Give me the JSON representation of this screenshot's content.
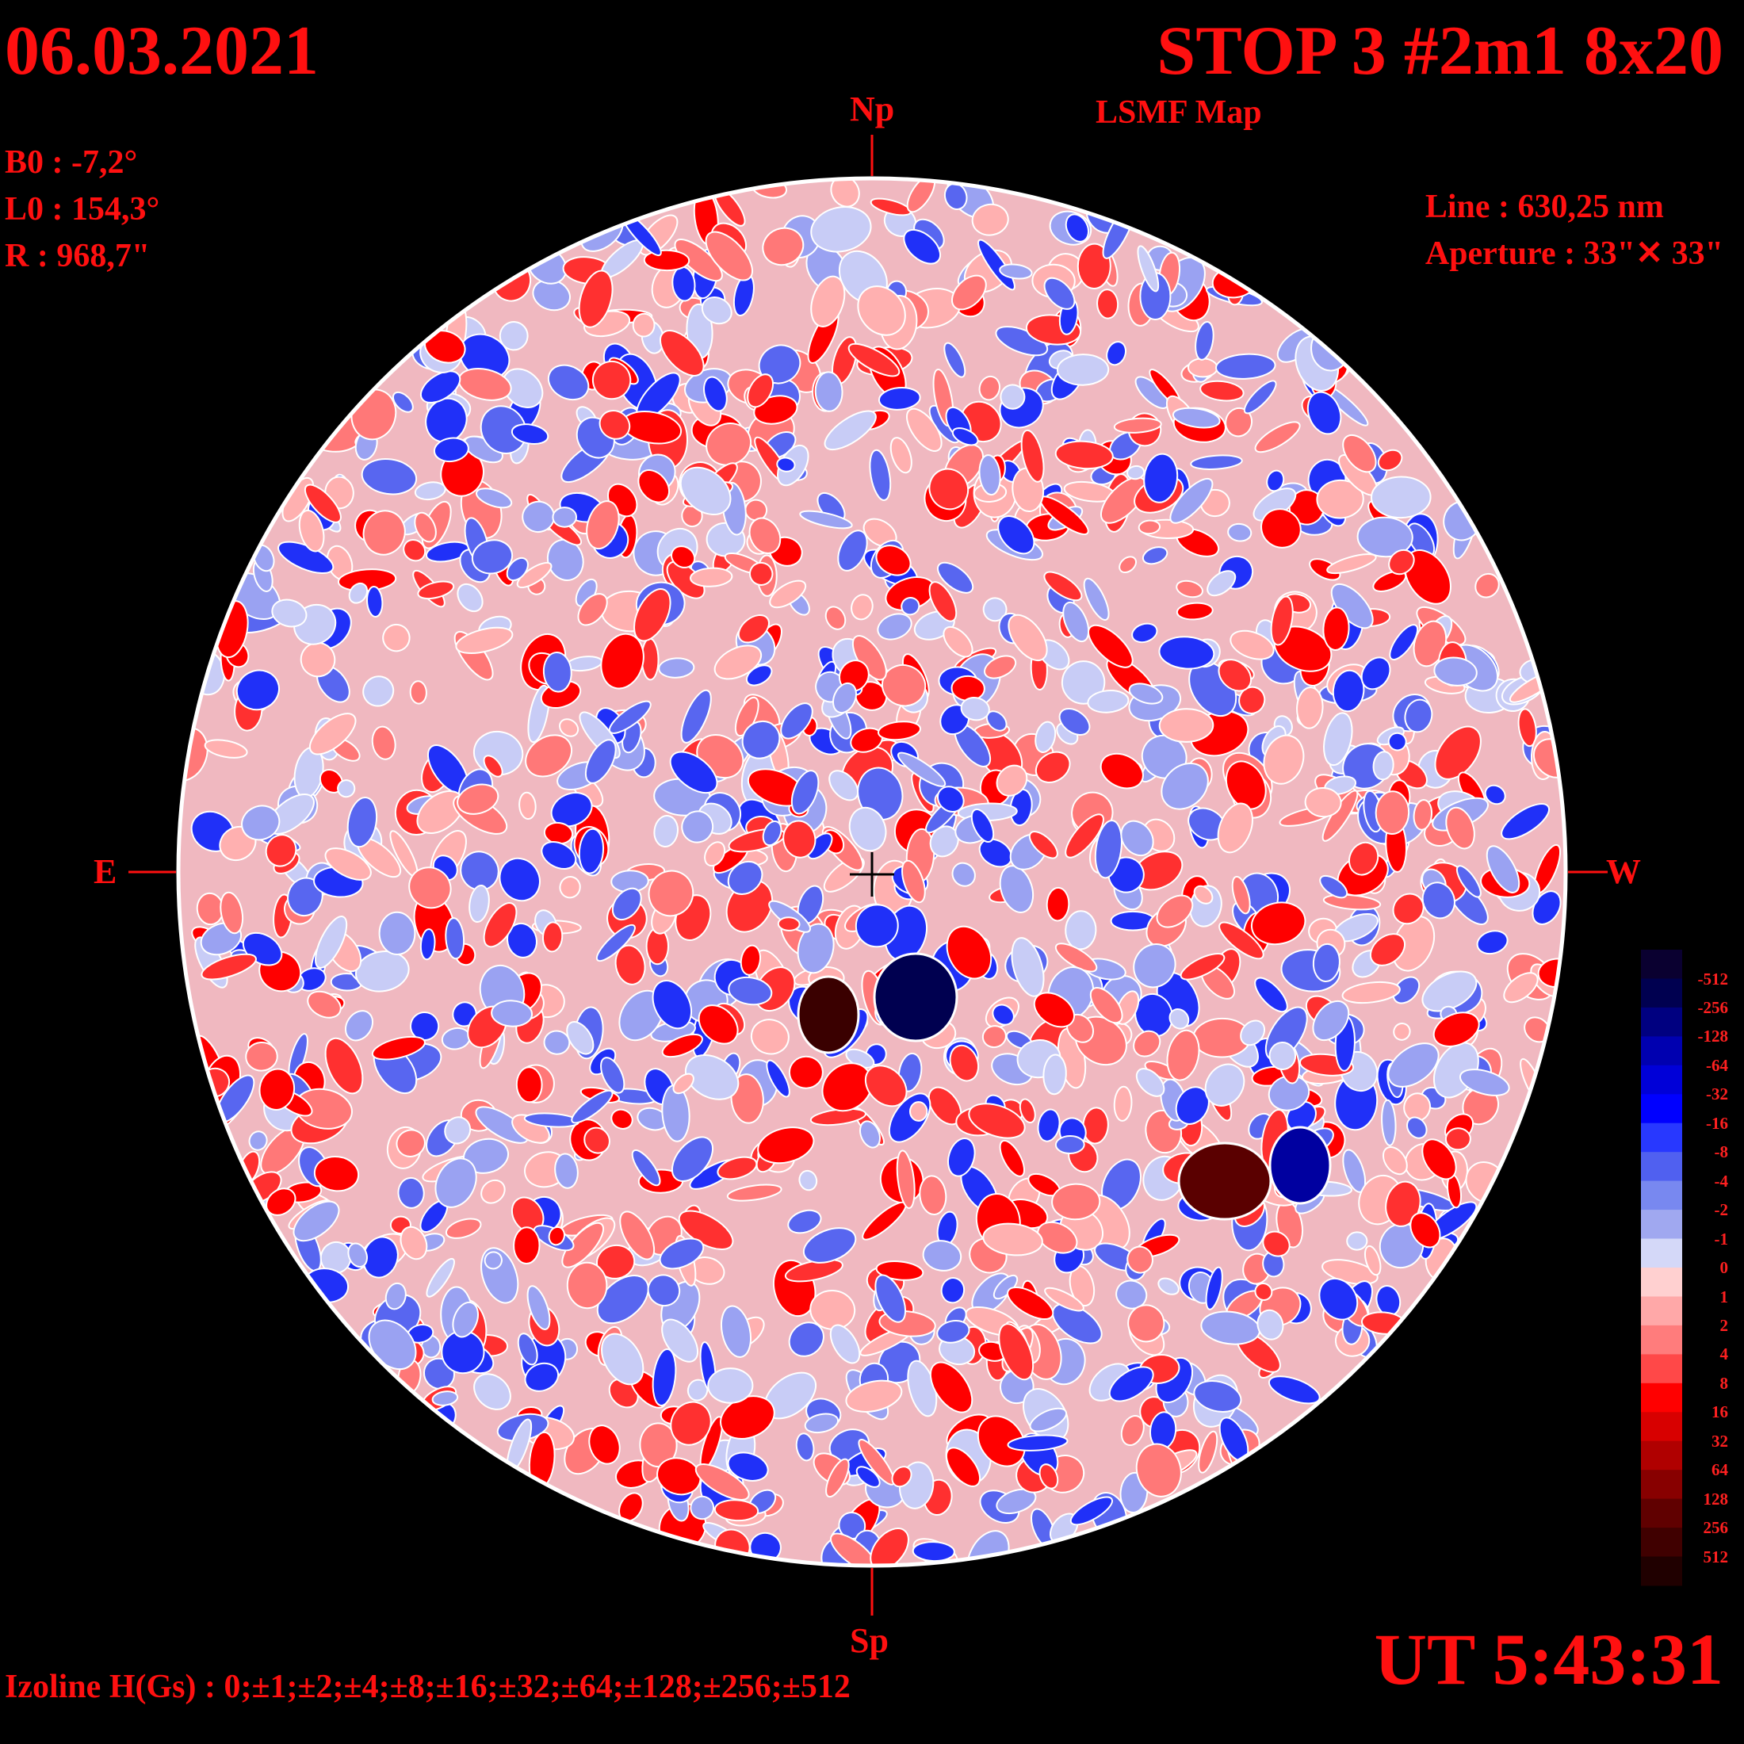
{
  "header": {
    "date": "06.03.2021",
    "title": "STOP 3 #2m1 8x20",
    "subtitle": "LSMF  Map"
  },
  "params": {
    "b0": "B0 : -7,2°",
    "l0": "L0 : 154,3°",
    "r": "R  : 968,7\""
  },
  "instrument": {
    "line": "Line :  630,25 nm",
    "aperture": "Aperture : 33\"✕ 33\""
  },
  "directions": {
    "north": "Np",
    "south": "Sp",
    "east": "E",
    "west": "W"
  },
  "footer": {
    "isolines": "Izoline H(Gs) : 0;±1;±2;±4;±8;±16;±32;±64;±128;±256;±512",
    "time": "UT 5:43:31"
  },
  "color_scale": {
    "labels": [
      "-512",
      "-256",
      "-128",
      "-64",
      "-32",
      "-16",
      "-8",
      "-4",
      "-2",
      "-1",
      "0",
      "1",
      "2",
      "4",
      "8",
      "16",
      "32",
      "64",
      "128",
      "256",
      "512"
    ],
    "colors": [
      "#0a0030",
      "#000050",
      "#000080",
      "#0000b0",
      "#0000d8",
      "#0000ff",
      "#2838ff",
      "#5060f0",
      "#7888f0",
      "#a0a8f0",
      "#d4d8f8",
      "#ffd0d0",
      "#ffa8a8",
      "#ff7c7c",
      "#ff4848",
      "#ff0000",
      "#d80000",
      "#b00000",
      "#880000",
      "#600000",
      "#400000",
      "#200000"
    ]
  }
}
